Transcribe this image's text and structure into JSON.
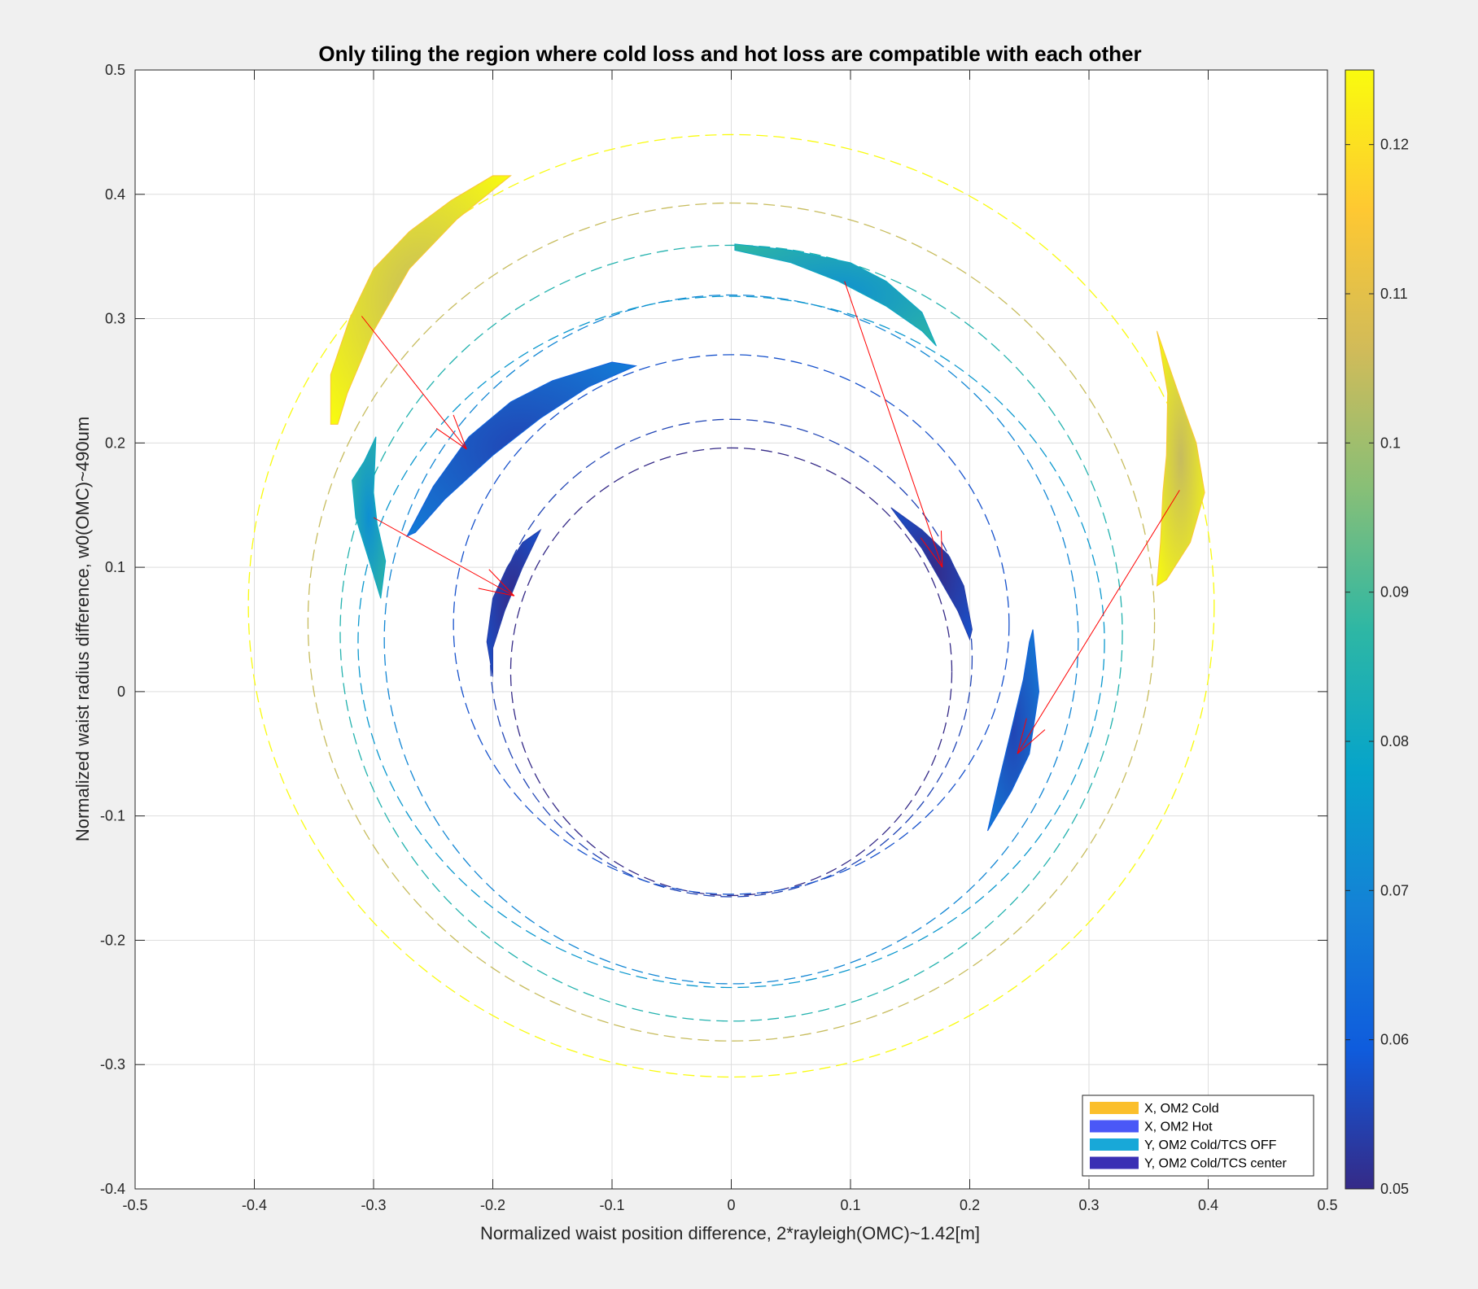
{
  "window": {
    "background": "#f0f0f0"
  },
  "chart_data": {
    "type": "scatter",
    "title": "Only tiling the region where cold loss and hot loss are compatible with each other",
    "xlabel": "Normalized waist position difference, 2*rayleigh(OMC)~1.42[m]",
    "ylabel": "Normalized waist radius difference, w0(OMC)~490um",
    "xlim": [
      -0.5,
      0.5
    ],
    "ylim": [
      -0.4,
      0.5
    ],
    "xticks": [
      -0.5,
      -0.4,
      -0.3,
      -0.2,
      -0.1,
      0,
      0.1,
      0.2,
      0.3,
      0.4,
      0.5
    ],
    "xtick_labels": [
      "-0.5",
      "-0.4",
      "-0.3",
      "-0.2",
      "-0.1",
      "0",
      "0.1",
      "0.2",
      "0.3",
      "0.4",
      "0.5"
    ],
    "yticks": [
      -0.4,
      -0.3,
      -0.2,
      -0.1,
      0,
      0.1,
      0.2,
      0.3,
      0.4,
      0.5
    ],
    "ytick_labels": [
      "-0.4",
      "-0.3",
      "-0.2",
      "-0.1",
      "0",
      "0.1",
      "0.2",
      "0.3",
      "0.4",
      "0.5"
    ],
    "grid": true,
    "colorbar": {
      "range": [
        0.05,
        0.125
      ],
      "ticks": [
        0.05,
        0.06,
        0.07,
        0.08,
        0.09,
        0.1,
        0.11,
        0.12
      ],
      "tick_labels": [
        "0.05",
        "0.06",
        "0.07",
        "0.08",
        "0.09",
        "0.1",
        "0.11",
        "0.12"
      ],
      "colormap": "parula"
    },
    "legend": {
      "placement": "bottom-right",
      "entries": [
        {
          "label": "X, OM2 Cold",
          "color": "#fbbf2c"
        },
        {
          "label": "X, OM2 Hot",
          "color": "#4a58f7"
        },
        {
          "label": "Y, OM2 Cold/TCS OFF",
          "color": "#18a8d8"
        },
        {
          "label": "Y, OM2 Cold/TCS center",
          "color": "#3a2fb4"
        }
      ]
    },
    "contours": [
      {
        "level": 0.05,
        "cx": 0.0,
        "cy": 0.016,
        "rx": 0.185,
        "ry": 0.18
      },
      {
        "level": 0.055,
        "cx": 0.0,
        "cy": 0.027,
        "rx": 0.202,
        "ry": 0.192
      },
      {
        "level": 0.0575,
        "cx": 0.0,
        "cy": 0.054,
        "rx": 0.233,
        "ry": 0.217
      },
      {
        "level": 0.07,
        "cx": 0.0,
        "cy": 0.042,
        "rx": 0.291,
        "ry": 0.277
      },
      {
        "level": 0.075,
        "cx": 0.0,
        "cy": 0.04,
        "rx": 0.313,
        "ry": 0.278
      },
      {
        "level": 0.085,
        "cx": 0.0,
        "cy": 0.047,
        "rx": 0.328,
        "ry": 0.312
      },
      {
        "level": 0.105,
        "cx": 0.0,
        "cy": 0.056,
        "rx": 0.355,
        "ry": 0.337
      },
      {
        "level": 0.125,
        "cx": 0.0,
        "cy": 0.069,
        "rx": 0.405,
        "ry": 0.379
      }
    ],
    "regions": [
      {
        "series": "X, OM2 Cold",
        "level_low": 0.105,
        "level_high": 0.125,
        "polygon": [
          [
            -0.336,
            0.215
          ],
          [
            -0.336,
            0.255
          ],
          [
            -0.32,
            0.3
          ],
          [
            -0.3,
            0.34
          ],
          [
            -0.27,
            0.37
          ],
          [
            -0.235,
            0.395
          ],
          [
            -0.2,
            0.415
          ],
          [
            -0.185,
            0.415
          ],
          [
            -0.23,
            0.38
          ],
          [
            -0.27,
            0.34
          ],
          [
            -0.3,
            0.29
          ],
          [
            -0.322,
            0.24
          ],
          [
            -0.33,
            0.215
          ]
        ]
      },
      {
        "series": "X, OM2 Cold",
        "level_low": 0.105,
        "level_high": 0.125,
        "polygon": [
          [
            0.357,
            0.29
          ],
          [
            0.375,
            0.24
          ],
          [
            0.39,
            0.2
          ],
          [
            0.397,
            0.16
          ],
          [
            0.385,
            0.12
          ],
          [
            0.365,
            0.09
          ],
          [
            0.357,
            0.085
          ],
          [
            0.36,
            0.12
          ],
          [
            0.362,
            0.16
          ],
          [
            0.365,
            0.19
          ],
          [
            0.366,
            0.24
          ],
          [
            0.36,
            0.275
          ]
        ]
      },
      {
        "series": "Y, OM2 Cold/TCS OFF",
        "level_low": 0.0725,
        "level_high": 0.0875,
        "polygon": [
          [
            0.003,
            0.36
          ],
          [
            0.05,
            0.355
          ],
          [
            0.1,
            0.345
          ],
          [
            0.13,
            0.33
          ],
          [
            0.16,
            0.305
          ],
          [
            0.172,
            0.278
          ],
          [
            0.16,
            0.29
          ],
          [
            0.13,
            0.31
          ],
          [
            0.09,
            0.33
          ],
          [
            0.05,
            0.345
          ],
          [
            0.003,
            0.355
          ]
        ]
      },
      {
        "series": "Y, OM2 Cold/TCS OFF",
        "level_low": 0.0725,
        "level_high": 0.0875,
        "polygon": [
          [
            -0.298,
            0.205
          ],
          [
            -0.3,
            0.16
          ],
          [
            -0.297,
            0.135
          ],
          [
            -0.29,
            0.105
          ],
          [
            -0.294,
            0.075
          ],
          [
            -0.302,
            0.1
          ],
          [
            -0.315,
            0.14
          ],
          [
            -0.318,
            0.17
          ],
          [
            -0.308,
            0.185
          ]
        ]
      },
      {
        "series": "X, OM2 Hot",
        "level_low": 0.055,
        "level_high": 0.0675,
        "polygon": [
          [
            -0.272,
            0.125
          ],
          [
            -0.25,
            0.165
          ],
          [
            -0.22,
            0.205
          ],
          [
            -0.185,
            0.233
          ],
          [
            -0.15,
            0.25
          ],
          [
            -0.1,
            0.265
          ],
          [
            -0.08,
            0.262
          ],
          [
            -0.12,
            0.245
          ],
          [
            -0.16,
            0.22
          ],
          [
            -0.2,
            0.19
          ],
          [
            -0.24,
            0.155
          ],
          [
            -0.265,
            0.128
          ]
        ]
      },
      {
        "series": "X, OM2 Hot",
        "level_low": 0.055,
        "level_high": 0.0675,
        "polygon": [
          [
            0.253,
            0.05
          ],
          [
            0.258,
            0.0
          ],
          [
            0.25,
            -0.05
          ],
          [
            0.235,
            -0.08
          ],
          [
            0.215,
            -0.112
          ],
          [
            0.225,
            -0.07
          ],
          [
            0.235,
            -0.03
          ],
          [
            0.245,
            0.01
          ],
          [
            0.25,
            0.04
          ]
        ]
      },
      {
        "series": "Y, OM2 Cold/TCS center",
        "level_low": 0.05,
        "level_high": 0.0575,
        "polygon": [
          [
            -0.16,
            0.13
          ],
          [
            -0.175,
            0.1
          ],
          [
            -0.19,
            0.065
          ],
          [
            -0.2,
            0.035
          ],
          [
            -0.2,
            0.012
          ],
          [
            -0.205,
            0.04
          ],
          [
            -0.2,
            0.075
          ],
          [
            -0.188,
            0.1
          ],
          [
            -0.175,
            0.12
          ]
        ]
      },
      {
        "series": "Y, OM2 Cold/TCS center",
        "level_low": 0.05,
        "level_high": 0.0575,
        "polygon": [
          [
            0.134,
            0.148
          ],
          [
            0.16,
            0.13
          ],
          [
            0.182,
            0.11
          ],
          [
            0.195,
            0.085
          ],
          [
            0.202,
            0.05
          ],
          [
            0.2,
            0.042
          ],
          [
            0.19,
            0.065
          ],
          [
            0.175,
            0.09
          ],
          [
            0.16,
            0.115
          ],
          [
            0.14,
            0.14
          ]
        ]
      }
    ],
    "arrows": [
      {
        "from": [
          -0.31,
          0.302
        ],
        "to": [
          -0.222,
          0.195
        ]
      },
      {
        "from": [
          0.095,
          0.33
        ],
        "to": [
          0.177,
          0.1
        ]
      },
      {
        "from": [
          -0.3,
          0.14
        ],
        "to": [
          -0.182,
          0.077
        ]
      },
      {
        "from": [
          0.376,
          0.162
        ],
        "to": [
          0.24,
          -0.05
        ]
      }
    ],
    "arrow_color": "#ff0000"
  }
}
